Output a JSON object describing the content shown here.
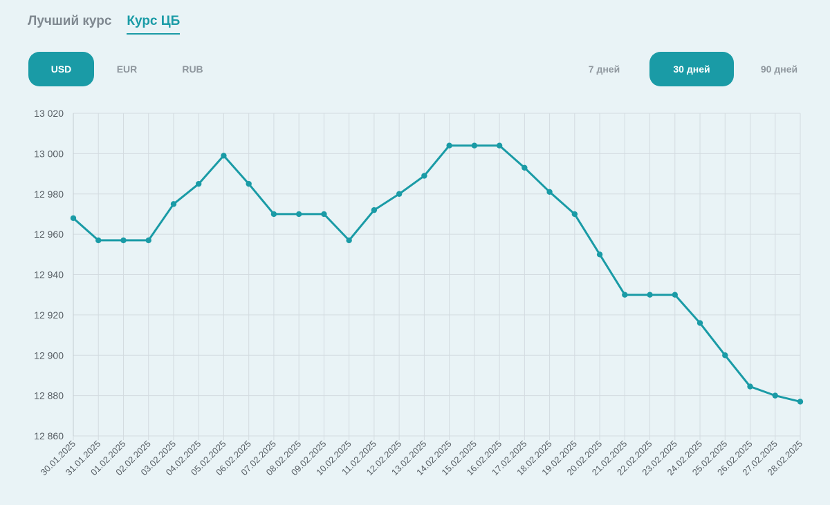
{
  "tabs": [
    {
      "label": "Лучший курс",
      "active": false
    },
    {
      "label": "Курс ЦБ",
      "active": true
    }
  ],
  "currencies": [
    {
      "label": "USD",
      "active": true
    },
    {
      "label": "EUR",
      "active": false
    },
    {
      "label": "RUB",
      "active": false
    }
  ],
  "periods": [
    {
      "label": "7 дней",
      "active": false
    },
    {
      "label": "30 дней",
      "active": true
    },
    {
      "label": "90 дней",
      "active": false
    }
  ],
  "colors": {
    "accent": "#1a9ba6",
    "background": "#e9f3f6",
    "grid": "#d3dbe0",
    "inactive_text": "#8f979e"
  },
  "chart_data": {
    "type": "line",
    "title": "",
    "xlabel": "",
    "ylabel": "",
    "ylim": [
      12860,
      13020
    ],
    "yticks": [
      "12 860",
      "12 880",
      "12 900",
      "12 920",
      "12 940",
      "12 960",
      "12 980",
      "13 000",
      "13 020"
    ],
    "grid": true,
    "x": [
      "30.01.2025",
      "31.01.2025",
      "01.02.2025",
      "02.02.2025",
      "03.02.2025",
      "04.02.2025",
      "05.02.2025",
      "06.02.2025",
      "07.02.2025",
      "08.02.2025",
      "09.02.2025",
      "10.02.2025",
      "11.02.2025",
      "12.02.2025",
      "13.02.2025",
      "14.02.2025",
      "15.02.2025",
      "16.02.2025",
      "17.02.2025",
      "18.02.2025",
      "19.02.2025",
      "20.02.2025",
      "21.02.2025",
      "22.02.2025",
      "23.02.2025",
      "24.02.2025",
      "25.02.2025",
      "26.02.2025",
      "27.02.2025",
      "28.02.2025"
    ],
    "series": [
      {
        "values": [
          12968,
          12957,
          12957,
          12957,
          12975,
          12985,
          12999,
          12985,
          12970,
          12970,
          12970,
          12957,
          12972,
          12980,
          12989,
          13004,
          13004,
          13004,
          12993,
          12981,
          12970,
          12950,
          12930,
          12930,
          12930,
          12916,
          12900,
          12884.5,
          12880,
          12877
        ]
      }
    ]
  }
}
